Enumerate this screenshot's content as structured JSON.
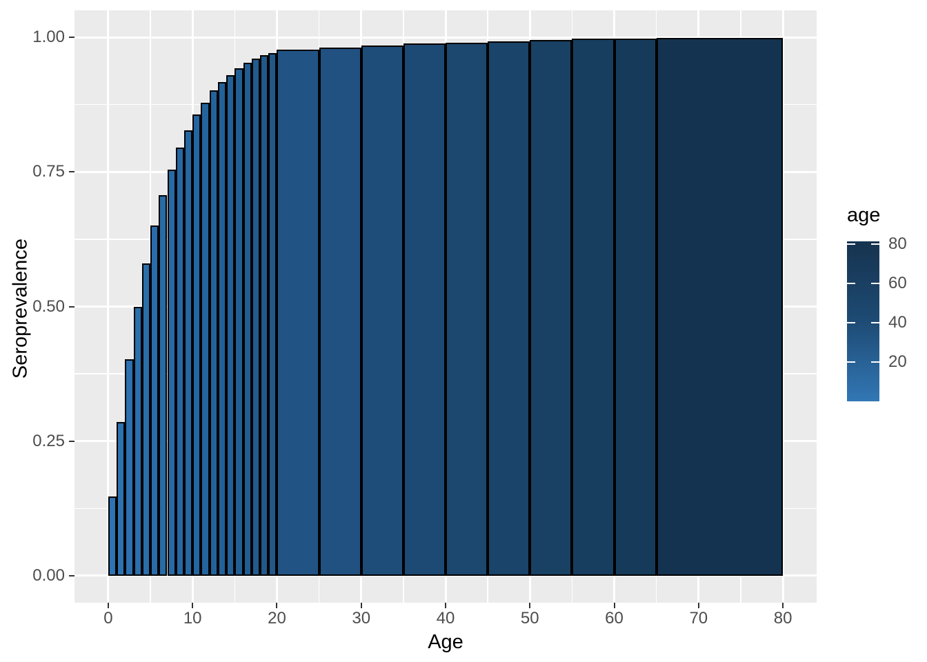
{
  "colors": {
    "background": "#ffffff",
    "panel_background": "#ebebeb",
    "gridline": "#ffffff",
    "bar_border": "#000000",
    "axis_text": "#4d4d4d",
    "axis_title_text": "#000000",
    "tick_mark": "#333333"
  },
  "chart_data": {
    "type": "bar",
    "title": "",
    "xlabel": "Age",
    "ylabel": "Seroprevalence",
    "grid": true,
    "xlim": [
      -4,
      84
    ],
    "ylim": [
      -0.05,
      1.05
    ],
    "x_ticks": {
      "values": [
        0,
        10,
        20,
        30,
        40,
        50,
        60,
        70,
        80
      ],
      "labels": [
        "0",
        "10",
        "20",
        "30",
        "40",
        "50",
        "60",
        "70",
        "80"
      ]
    },
    "y_ticks": {
      "values": [
        0,
        0.25,
        0.5,
        0.75,
        1
      ],
      "labels": [
        "0.00",
        "0.25",
        "0.50",
        "0.75",
        "1.00"
      ]
    },
    "bars": [
      {
        "x0": 0,
        "x1": 1,
        "value": 0.147,
        "fill": "#2e73b2"
      },
      {
        "x0": 1,
        "x1": 2,
        "value": 0.286,
        "fill": "#2d72b0"
      },
      {
        "x0": 2,
        "x1": 3,
        "value": 0.402,
        "fill": "#2c70ae"
      },
      {
        "x0": 3,
        "x1": 4,
        "value": 0.5,
        "fill": "#2b6fac"
      },
      {
        "x0": 4,
        "x1": 5,
        "value": 0.58,
        "fill": "#2a6eaa"
      },
      {
        "x0": 5,
        "x1": 6,
        "value": 0.65,
        "fill": "#296ca9"
      },
      {
        "x0": 6,
        "x1": 7,
        "value": 0.707,
        "fill": "#286ba7"
      },
      {
        "x0": 7,
        "x1": 8,
        "value": 0.754,
        "fill": "#276aa5"
      },
      {
        "x0": 8,
        "x1": 9,
        "value": 0.795,
        "fill": "#2668a3"
      },
      {
        "x0": 9,
        "x1": 10,
        "value": 0.827,
        "fill": "#2567a1"
      },
      {
        "x0": 10,
        "x1": 11,
        "value": 0.857,
        "fill": "#24669f"
      },
      {
        "x0": 11,
        "x1": 12,
        "value": 0.879,
        "fill": "#23649d"
      },
      {
        "x0": 12,
        "x1": 13,
        "value": 0.901,
        "fill": "#23639b"
      },
      {
        "x0": 13,
        "x1": 14,
        "value": 0.917,
        "fill": "#226199"
      },
      {
        "x0": 14,
        "x1": 15,
        "value": 0.929,
        "fill": "#226096"
      },
      {
        "x0": 15,
        "x1": 16,
        "value": 0.942,
        "fill": "#215e94"
      },
      {
        "x0": 16,
        "x1": 17,
        "value": 0.953,
        "fill": "#215d91"
      },
      {
        "x0": 17,
        "x1": 18,
        "value": 0.961,
        "fill": "#225b8e"
      },
      {
        "x0": 18,
        "x1": 19,
        "value": 0.967,
        "fill": "#22598b"
      },
      {
        "x0": 19,
        "x1": 20,
        "value": 0.971,
        "fill": "#225788"
      },
      {
        "x0": 20,
        "x1": 25,
        "value": 0.977,
        "fill": "#215485"
      },
      {
        "x0": 25,
        "x1": 30,
        "value": 0.981,
        "fill": "#215181"
      },
      {
        "x0": 30,
        "x1": 35,
        "value": 0.985,
        "fill": "#1f4d7a"
      },
      {
        "x0": 35,
        "x1": 40,
        "value": 0.988,
        "fill": "#1d4a74"
      },
      {
        "x0": 40,
        "x1": 45,
        "value": 0.99,
        "fill": "#1c476e"
      },
      {
        "x0": 45,
        "x1": 50,
        "value": 0.992,
        "fill": "#1a4469"
      },
      {
        "x0": 50,
        "x1": 55,
        "value": 0.995,
        "fill": "#194164"
      },
      {
        "x0": 55,
        "x1": 60,
        "value": 0.997,
        "fill": "#173e5f"
      },
      {
        "x0": 60,
        "x1": 65,
        "value": 0.998,
        "fill": "#163b5a"
      },
      {
        "x0": 65,
        "x1": 80,
        "value": 0.999,
        "fill": "#143351"
      }
    ],
    "legend": {
      "title": "age",
      "position": "right",
      "ticks": {
        "values": [
          80,
          60,
          40,
          20
        ],
        "labels": [
          "80",
          "60",
          "40",
          "20"
        ]
      },
      "gradient_high": "#16334f",
      "gradient_mid": "#1d4a73",
      "gradient_low": "#3277b5"
    }
  }
}
